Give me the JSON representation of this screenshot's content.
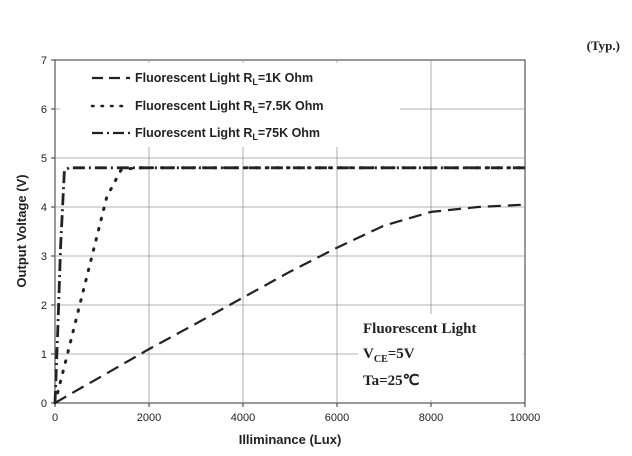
{
  "page": {
    "typ_label": "(Typ.)"
  },
  "chart_data": {
    "type": "line",
    "title": "",
    "xlabel": "Illiminance (Lux)",
    "ylabel": "Output Voltage (V)",
    "xlim": [
      0,
      10000
    ],
    "ylim": [
      0,
      7
    ],
    "xticks": [
      0,
      2000,
      4000,
      6000,
      8000,
      10000
    ],
    "yticks": [
      0,
      1,
      2,
      3,
      4,
      5,
      6,
      7
    ],
    "grid": true,
    "legend_position": "top-left",
    "series": [
      {
        "name": "Fluorescent Light RL=1K Ohm",
        "legend_main": "Fluorescent Light  R",
        "legend_sub": "L",
        "legend_tail": "=1K Ohm",
        "style": "dashed",
        "x": [
          0,
          300,
          1000,
          2000,
          3000,
          4000,
          5000,
          6000,
          7000,
          8000,
          9000,
          10000
        ],
        "y": [
          0,
          0.17,
          0.55,
          1.1,
          1.62,
          2.15,
          2.68,
          3.17,
          3.62,
          3.9,
          4.0,
          4.05
        ]
      },
      {
        "name": "Fluorescent Light RL=7.5K Ohm",
        "legend_main": "Fluorescent Light  R",
        "legend_sub": "L",
        "legend_tail": "=7.5K Ohm",
        "style": "dotted",
        "x": [
          0,
          200,
          500,
          800,
          1100,
          1400,
          1700,
          2000,
          4000,
          6000,
          8000,
          10000
        ],
        "y": [
          0,
          0.75,
          1.9,
          3.05,
          4.2,
          4.75,
          4.8,
          4.8,
          4.8,
          4.8,
          4.8,
          4.8
        ]
      },
      {
        "name": "Fluorescent Light RL=75K Ohm",
        "legend_main": "Fluorescent Light  R",
        "legend_sub": "L",
        "legend_tail": "=75K Ohm",
        "style": "dashdot",
        "x": [
          0,
          60,
          120,
          200,
          300,
          2000,
          4000,
          6000,
          8000,
          10000
        ],
        "y": [
          0,
          1.5,
          3.2,
          4.75,
          4.8,
          4.8,
          4.8,
          4.8,
          4.8,
          4.8
        ]
      }
    ],
    "annotation": {
      "line1": "Fluorescent Light",
      "line2_main": "V",
      "line2_sub": "CE",
      "line2_tail": "=5V",
      "line3": "Ta=25℃"
    }
  }
}
